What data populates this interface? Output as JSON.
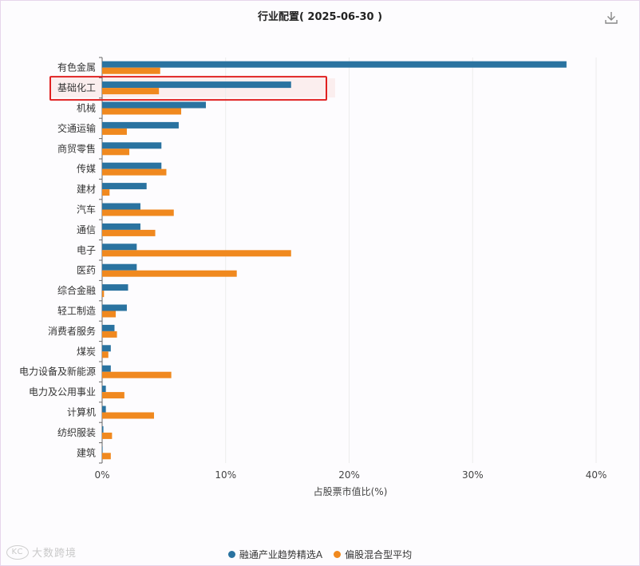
{
  "chart_data": {
    "type": "bar",
    "orientation": "horizontal",
    "title": "行业配置( 2025-06-30 )",
    "xlabel": "占股票市值比(%)",
    "xlim": [
      0,
      42
    ],
    "xticks": [
      0,
      10,
      20,
      30,
      40
    ],
    "xtick_labels": [
      "0%",
      "10%",
      "20%",
      "30%",
      "40%"
    ],
    "grid": true,
    "legend_position": "bottom",
    "categories": [
      "有色金属",
      "基础化工",
      "机械",
      "交通运输",
      "商贸零售",
      "传媒",
      "建材",
      "汽车",
      "通信",
      "电子",
      "医药",
      "综合金融",
      "轻工制造",
      "消费者服务",
      "煤炭",
      "电力设备及新能源",
      "电力及公用事业",
      "计算机",
      "纺织服装",
      "建筑"
    ],
    "series": [
      {
        "name": "融通产业趋势精选A",
        "color": "#2a73a0",
        "values": [
          37.6,
          15.3,
          8.4,
          6.2,
          4.8,
          4.8,
          3.6,
          3.1,
          3.1,
          2.8,
          2.8,
          2.1,
          2.0,
          1.0,
          0.7,
          0.7,
          0.3,
          0.3,
          0.1,
          0
        ]
      },
      {
        "name": "偏股混合型平均",
        "color": "#f0891f",
        "values": [
          4.7,
          4.6,
          6.4,
          2.0,
          2.2,
          5.2,
          0.6,
          5.8,
          4.3,
          15.3,
          10.9,
          0.15,
          1.1,
          1.2,
          0.5,
          5.6,
          1.8,
          4.2,
          0.8,
          0.7
        ]
      }
    ],
    "highlight_category": "基础化工"
  },
  "watermark": "大数跨境",
  "icons": {
    "download": "download-icon"
  }
}
